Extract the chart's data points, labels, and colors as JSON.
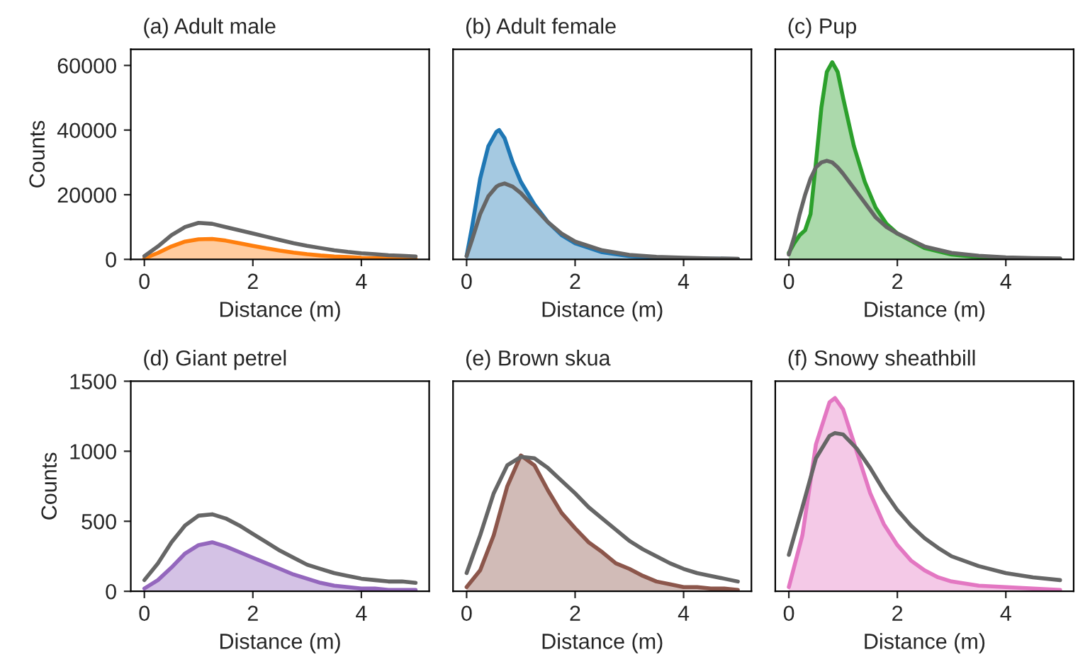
{
  "chart_data": [
    {
      "type": "area",
      "title": "(a) Adult male",
      "xlabel": "Distance (m)",
      "ylabel": "Counts",
      "xlim": [
        -0.25,
        5.25
      ],
      "xticks": [
        0,
        2,
        4
      ],
      "ylim": [
        0,
        65000
      ],
      "yticks": [
        0,
        20000,
        40000,
        60000
      ],
      "grid": false,
      "series": [
        {
          "color": "#ff7f0e",
          "x": [
            0,
            0.25,
            0.5,
            0.75,
            1,
            1.25,
            1.5,
            1.75,
            2,
            2.25,
            2.5,
            2.75,
            3,
            3.25,
            3.5,
            3.75,
            4,
            4.25,
            4.5,
            4.75,
            5
          ],
          "values": [
            300,
            2000,
            4000,
            5500,
            6200,
            6300,
            5800,
            5000,
            4200,
            3400,
            2700,
            2100,
            1600,
            1200,
            900,
            700,
            500,
            400,
            300,
            300,
            200
          ]
        },
        {
          "type": "line",
          "color": "#666666",
          "x": [
            0,
            0.25,
            0.5,
            0.75,
            1,
            1.25,
            1.5,
            1.75,
            2,
            2.25,
            2.5,
            2.75,
            3,
            3.25,
            3.5,
            3.75,
            4,
            4.25,
            4.5,
            4.75,
            5
          ],
          "values": [
            1000,
            4000,
            7500,
            10000,
            11300,
            11000,
            10000,
            9000,
            8000,
            7000,
            6000,
            5000,
            4200,
            3500,
            2800,
            2300,
            1900,
            1600,
            1300,
            1100,
            900
          ]
        }
      ]
    },
    {
      "type": "area",
      "title": "(b) Adult female",
      "xlabel": "Distance (m)",
      "xlim": [
        -0.25,
        5.25
      ],
      "xticks": [
        0,
        2,
        4
      ],
      "ylim": [
        0,
        65000
      ],
      "tick_labels": "x",
      "grid": false,
      "series": [
        {
          "color": "#1f77b4",
          "x": [
            0,
            0.1,
            0.25,
            0.4,
            0.55,
            0.6,
            0.7,
            0.85,
            1,
            1.25,
            1.5,
            1.75,
            2,
            2.5,
            3,
            3.5,
            4,
            4.5,
            5
          ],
          "values": [
            1000,
            10000,
            25000,
            35000,
            39500,
            40000,
            37500,
            30000,
            24000,
            17000,
            11500,
            7500,
            5000,
            2200,
            1000,
            500,
            300,
            200,
            100
          ]
        },
        {
          "type": "line",
          "color": "#666666",
          "x": [
            0,
            0.1,
            0.25,
            0.4,
            0.55,
            0.6,
            0.7,
            0.85,
            1,
            1.25,
            1.5,
            1.75,
            2,
            2.5,
            3,
            3.5,
            4,
            4.5,
            5
          ],
          "values": [
            1000,
            6000,
            14000,
            19500,
            22500,
            23000,
            23500,
            22500,
            20500,
            16000,
            11500,
            8000,
            5500,
            2800,
            1400,
            800,
            500,
            300,
            200
          ]
        }
      ]
    },
    {
      "type": "area",
      "title": "(c) Pup",
      "xlabel": "Distance (m)",
      "xlim": [
        -0.25,
        5.25
      ],
      "xticks": [
        0,
        2,
        4
      ],
      "ylim": [
        0,
        65000
      ],
      "tick_labels": "x",
      "grid": false,
      "series": [
        {
          "color": "#2ca02c",
          "x": [
            0,
            0.1,
            0.2,
            0.3,
            0.4,
            0.5,
            0.6,
            0.7,
            0.8,
            0.9,
            1,
            1.2,
            1.4,
            1.6,
            1.8,
            2,
            2.5,
            3,
            3.5,
            4,
            4.5,
            5
          ],
          "values": [
            2000,
            5000,
            7500,
            9000,
            14000,
            30000,
            47000,
            58000,
            61000,
            58000,
            50000,
            35000,
            24000,
            16000,
            11000,
            8000,
            3500,
            1500,
            700,
            400,
            200,
            100
          ]
        },
        {
          "type": "line",
          "color": "#666666",
          "x": [
            0,
            0.1,
            0.2,
            0.3,
            0.4,
            0.5,
            0.6,
            0.7,
            0.8,
            0.9,
            1,
            1.2,
            1.4,
            1.6,
            1.8,
            2,
            2.5,
            3,
            3.5,
            4,
            4.5,
            5
          ],
          "values": [
            1500,
            7000,
            14000,
            20000,
            25000,
            28500,
            30000,
            30500,
            30000,
            28500,
            26500,
            22000,
            17500,
            13000,
            10000,
            8000,
            4000,
            2000,
            1100,
            600,
            400,
            300
          ]
        }
      ]
    },
    {
      "type": "area",
      "title": "(d) Giant petrel",
      "xlabel": "Distance (m)",
      "ylabel": "Counts",
      "xlim": [
        -0.25,
        5.25
      ],
      "xticks": [
        0,
        2,
        4
      ],
      "ylim": [
        0,
        1500
      ],
      "yticks": [
        0,
        500,
        1000,
        1500
      ],
      "grid": false,
      "series": [
        {
          "color": "#9467bd",
          "x": [
            0,
            0.25,
            0.5,
            0.75,
            1,
            1.25,
            1.5,
            1.75,
            2,
            2.25,
            2.5,
            2.75,
            3,
            3.25,
            3.5,
            3.75,
            4,
            4.25,
            4.5,
            4.75,
            5
          ],
          "values": [
            20,
            80,
            170,
            270,
            330,
            350,
            320,
            280,
            240,
            200,
            160,
            120,
            90,
            60,
            40,
            30,
            20,
            20,
            10,
            10,
            10
          ]
        },
        {
          "type": "line",
          "color": "#666666",
          "x": [
            0,
            0.25,
            0.5,
            0.75,
            1,
            1.25,
            1.5,
            1.75,
            2,
            2.25,
            2.5,
            2.75,
            3,
            3.25,
            3.5,
            3.75,
            4,
            4.25,
            4.5,
            4.75,
            5
          ],
          "values": [
            80,
            200,
            350,
            470,
            540,
            550,
            520,
            470,
            410,
            350,
            290,
            240,
            190,
            160,
            130,
            110,
            90,
            80,
            70,
            70,
            60
          ]
        }
      ]
    },
    {
      "type": "area",
      "title": "(e) Brown skua",
      "xlabel": "Distance (m)",
      "xlim": [
        -0.25,
        5.25
      ],
      "xticks": [
        0,
        2,
        4
      ],
      "ylim": [
        0,
        1500
      ],
      "tick_labels": "x",
      "grid": false,
      "series": [
        {
          "color": "#8c564b",
          "x": [
            0,
            0.25,
            0.5,
            0.75,
            1,
            1.25,
            1.5,
            1.75,
            2,
            2.25,
            2.5,
            2.75,
            3,
            3.25,
            3.5,
            3.75,
            4,
            4.25,
            4.5,
            4.75,
            5
          ],
          "values": [
            30,
            150,
            400,
            750,
            970,
            900,
            720,
            560,
            450,
            350,
            280,
            200,
            160,
            110,
            70,
            50,
            30,
            30,
            20,
            20,
            10
          ]
        },
        {
          "type": "line",
          "color": "#666666",
          "x": [
            0,
            0.25,
            0.5,
            0.75,
            1,
            1.25,
            1.5,
            1.75,
            2,
            2.25,
            2.5,
            2.75,
            3,
            3.25,
            3.5,
            3.75,
            4,
            4.25,
            4.5,
            4.75,
            5
          ],
          "values": [
            130,
            400,
            700,
            900,
            960,
            950,
            880,
            790,
            700,
            600,
            520,
            440,
            360,
            300,
            250,
            200,
            160,
            130,
            110,
            90,
            70
          ]
        }
      ]
    },
    {
      "type": "area",
      "title": "(f) Snowy sheathbill",
      "xlabel": "Distance (m)",
      "xlim": [
        -0.25,
        5.25
      ],
      "xticks": [
        0,
        2,
        4
      ],
      "ylim": [
        0,
        1500
      ],
      "tick_labels": "x",
      "grid": false,
      "series": [
        {
          "color": "#e377c2",
          "x": [
            0,
            0.25,
            0.5,
            0.75,
            0.85,
            1,
            1.25,
            1.5,
            1.75,
            2,
            2.25,
            2.5,
            2.75,
            3,
            3.5,
            4,
            4.5,
            5
          ],
          "values": [
            30,
            400,
            1050,
            1350,
            1380,
            1300,
            1000,
            700,
            480,
            330,
            220,
            150,
            100,
            70,
            40,
            30,
            20,
            10
          ]
        },
        {
          "type": "line",
          "color": "#666666",
          "x": [
            0,
            0.25,
            0.5,
            0.75,
            0.85,
            1,
            1.25,
            1.5,
            1.75,
            2,
            2.25,
            2.5,
            2.75,
            3,
            3.5,
            4,
            4.5,
            5
          ],
          "values": [
            260,
            600,
            950,
            1110,
            1130,
            1120,
            1020,
            880,
            720,
            580,
            470,
            380,
            310,
            250,
            180,
            130,
            100,
            80
          ]
        }
      ]
    }
  ]
}
